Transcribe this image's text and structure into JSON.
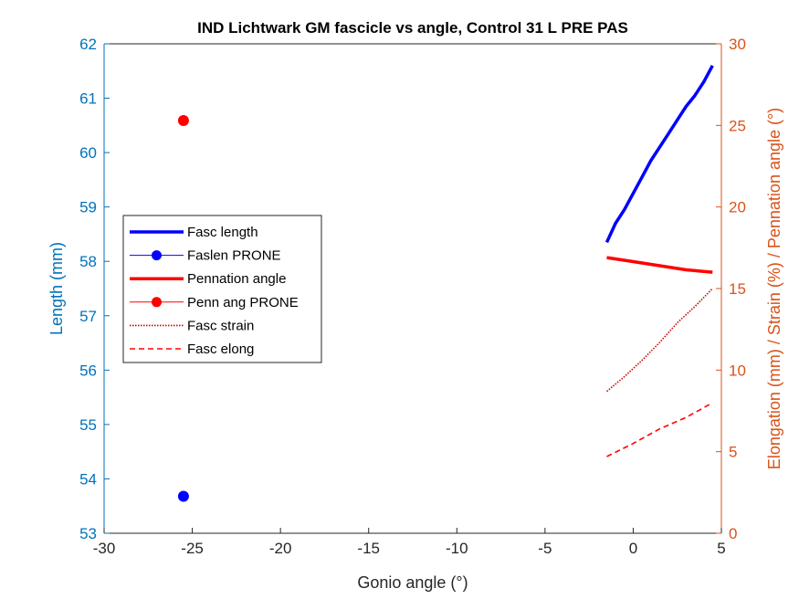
{
  "chart_data": {
    "type": "line",
    "title": "IND Lichtwark GM fascicle vs angle, Control 31 L PRE PAS",
    "xlabel": "Gonio angle (°)",
    "ylabel_left": "Length (mm)",
    "ylabel_right": "Elongation (mm) / Strain (%) / Pennation angle (°)",
    "xlim": [
      -30,
      5
    ],
    "ylim_left": [
      53,
      62
    ],
    "ylim_right": [
      0,
      30
    ],
    "xticks": [
      "-30",
      "-25",
      "-20",
      "-15",
      "-10",
      "-5",
      "0",
      "5"
    ],
    "yticks_left": [
      "53",
      "54",
      "55",
      "56",
      "57",
      "58",
      "59",
      "60",
      "61",
      "62"
    ],
    "yticks_right": [
      "0",
      "5",
      "10",
      "15",
      "20",
      "25",
      "30"
    ],
    "grid": false,
    "legend_position": "center-left",
    "colors": {
      "left_axis": "#0072BD",
      "right_axis": "#D95319",
      "blue": "#0000FF",
      "red": "#FF0000",
      "dark_red": "#CC0000"
    },
    "series": [
      {
        "name": "Fasc length",
        "axis": "left",
        "style": "solid-thick",
        "color": "#0000FF",
        "x": [
          -1.5,
          -1,
          -0.5,
          0,
          0.5,
          1,
          1.5,
          2,
          2.5,
          3,
          3.5,
          4,
          4.5
        ],
        "y": [
          58.35,
          58.7,
          58.95,
          59.25,
          59.55,
          59.85,
          60.1,
          60.35,
          60.6,
          60.85,
          61.05,
          61.3,
          61.6
        ]
      },
      {
        "name": "Faslen PRONE",
        "axis": "left",
        "style": "marker",
        "color": "#0000FF",
        "x": [
          -25.5
        ],
        "y": [
          53.68
        ]
      },
      {
        "name": "Pennation angle",
        "axis": "right",
        "style": "solid-thick",
        "color": "#FF0000",
        "x": [
          -1.5,
          0,
          1.5,
          3,
          4.5
        ],
        "y": [
          16.9,
          16.65,
          16.4,
          16.15,
          16.0
        ]
      },
      {
        "name": "Penn ang PRONE",
        "axis": "right",
        "style": "marker",
        "color": "#FF0000",
        "x": [
          -25.5
        ],
        "y": [
          25.3
        ]
      },
      {
        "name": "Fasc strain",
        "axis": "right",
        "style": "dotted",
        "color": "#CC0000",
        "x": [
          -1.5,
          -0.5,
          0.5,
          1.5,
          2.5,
          3.5,
          4.5
        ],
        "y": [
          8.7,
          9.6,
          10.6,
          11.7,
          12.9,
          13.9,
          15.0
        ]
      },
      {
        "name": "Fasc elong",
        "axis": "right",
        "style": "dashed",
        "color": "#FF0000",
        "x": [
          -1.5,
          0,
          1.5,
          3,
          4.5
        ],
        "y": [
          4.7,
          5.5,
          6.4,
          7.1,
          8.0
        ]
      }
    ]
  }
}
